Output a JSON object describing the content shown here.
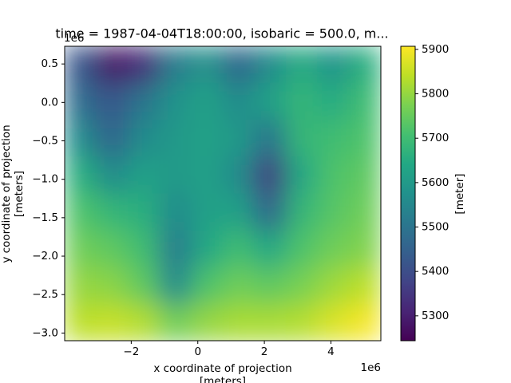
{
  "chart_data": {
    "type": "heatmap",
    "title": "time = 1987-04-04T18:00:00, isobaric = 500.0, m...",
    "x_label": [
      "x coordinate of projection",
      "[meters]"
    ],
    "y_label": [
      "y coordinate of projection",
      "[meters]"
    ],
    "x_offset": "1e6",
    "y_offset": "1e6",
    "colormap": "viridis",
    "xlim": [
      -4.0,
      5.5
    ],
    "ylim": [
      -3.1,
      0.73
    ],
    "xticks": [
      {
        "value": -2,
        "label": "−2"
      },
      0,
      2,
      4
    ],
    "yticks": [
      {
        "value": 0.5,
        "label": "0.5"
      },
      {
        "value": 0,
        "label": "0.0"
      },
      {
        "value": -0.5,
        "label": "−0.5"
      },
      {
        "value": -1,
        "label": "−1.0"
      },
      {
        "value": -1.5,
        "label": "−1.5"
      },
      {
        "value": -2,
        "label": "−2.0"
      },
      {
        "value": -2.5,
        "label": "−2.5"
      },
      {
        "value": -3,
        "label": "−3.0"
      }
    ],
    "x": [
      -3.525,
      -2.575,
      -1.625,
      -0.675,
      0.275,
      1.225,
      2.175,
      3.125,
      4.075,
      5.025
    ],
    "y": [
      0.49,
      0.01,
      -0.47,
      -0.95,
      -1.43,
      -1.91,
      -2.39,
      -2.87
    ],
    "values": [
      [
        5420,
        5280,
        5330,
        5520,
        5580,
        5460,
        5560,
        5650,
        5580,
        5660
      ],
      [
        5480,
        5420,
        5500,
        5580,
        5620,
        5560,
        5620,
        5680,
        5650,
        5700
      ],
      [
        5560,
        5460,
        5560,
        5600,
        5620,
        5600,
        5500,
        5680,
        5700,
        5720
      ],
      [
        5660,
        5560,
        5620,
        5600,
        5620,
        5560,
        5360,
        5640,
        5720,
        5740
      ],
      [
        5720,
        5680,
        5660,
        5560,
        5620,
        5620,
        5460,
        5680,
        5730,
        5760
      ],
      [
        5760,
        5740,
        5700,
        5520,
        5640,
        5700,
        5640,
        5720,
        5760,
        5780
      ],
      [
        5800,
        5790,
        5740,
        5560,
        5720,
        5760,
        5740,
        5770,
        5810,
        5840
      ],
      [
        5840,
        5850,
        5830,
        5760,
        5800,
        5820,
        5820,
        5830,
        5870,
        5900
      ]
    ],
    "colorbar": {
      "label": "[meter]",
      "lim": [
        5244,
        5907
      ],
      "ticks": [
        5300,
        5400,
        5500,
        5600,
        5700,
        5800,
        5900
      ]
    }
  }
}
